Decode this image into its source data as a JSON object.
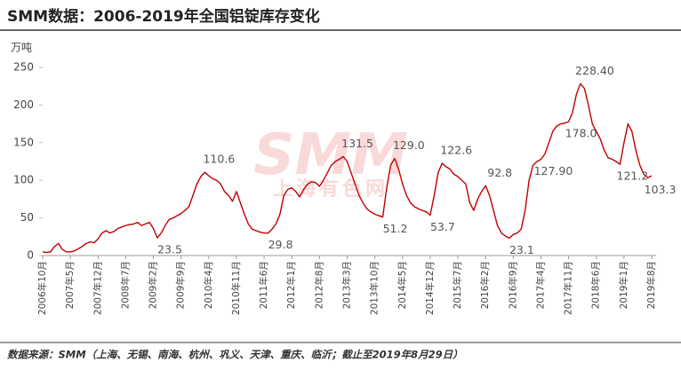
{
  "chart_data": {
    "type": "line",
    "title": "SMM数据：2006-2019年全国铝锭库存变化",
    "y_axis_label": "万吨",
    "watermark_logo": "SMM",
    "watermark_text": "上海有色网",
    "source": "数据来源：SMM（上海、无锡、南海、杭州、巩义、天津、重庆、临沂；截止至2019年8月29日）",
    "color": "#c00000",
    "ylim": [
      0,
      250
    ],
    "yticks": [
      0,
      50,
      100,
      150,
      200,
      250
    ],
    "grid": false,
    "categories": [
      "2006年10月",
      null,
      null,
      null,
      null,
      null,
      null,
      "2007年5月",
      null,
      null,
      null,
      null,
      null,
      null,
      "2007年12月",
      null,
      null,
      null,
      null,
      null,
      null,
      "2008年7月",
      null,
      null,
      null,
      null,
      null,
      null,
      "2009年2月",
      null,
      null,
      null,
      null,
      null,
      null,
      "2009年9月",
      null,
      null,
      null,
      null,
      null,
      null,
      "2010年4月",
      null,
      null,
      null,
      null,
      null,
      null,
      "2010年11月",
      null,
      null,
      null,
      null,
      null,
      null,
      "2011年6月",
      null,
      null,
      null,
      null,
      null,
      null,
      "2012年1月",
      null,
      null,
      null,
      null,
      null,
      null,
      "2012年8月",
      null,
      null,
      null,
      null,
      null,
      null,
      "2013年3月",
      null,
      null,
      null,
      null,
      null,
      null,
      "2013年10月",
      null,
      null,
      null,
      null,
      null,
      null,
      "2014年5月",
      null,
      null,
      null,
      null,
      null,
      null,
      "2014年12月",
      null,
      null,
      null,
      null,
      null,
      null,
      "2015年7月",
      null,
      null,
      null,
      null,
      null,
      null,
      "2016年2月",
      null,
      null,
      null,
      null,
      null,
      null,
      "2016年9月",
      null,
      null,
      null,
      null,
      null,
      null,
      "2017年4月",
      null,
      null,
      null,
      null,
      null,
      null,
      "2017年11月",
      null,
      null,
      null,
      null,
      null,
      null,
      "2018年6月",
      null,
      null,
      null,
      null,
      null,
      null,
      "2019年1月",
      null,
      null,
      null,
      null,
      null,
      null,
      "2019年8月"
    ],
    "values": [
      5,
      4,
      5,
      12,
      16,
      8,
      5,
      5,
      6,
      9,
      12,
      16,
      18,
      17,
      22,
      30,
      33,
      30,
      32,
      36,
      38,
      40,
      41,
      42,
      44,
      40,
      42,
      44,
      36,
      23.5,
      30,
      40,
      48,
      50,
      53,
      56,
      60,
      65,
      80,
      95,
      105,
      110.6,
      106,
      102,
      100,
      95,
      85,
      80,
      72,
      85,
      70,
      55,
      42,
      35,
      33,
      31,
      30,
      29.8,
      35,
      42,
      55,
      80,
      88,
      90,
      85,
      78,
      88,
      95,
      98,
      97,
      92,
      100,
      110,
      120,
      125,
      128,
      131.5,
      125,
      110,
      95,
      80,
      70,
      62,
      58,
      55,
      53,
      51.2,
      90,
      120,
      129,
      115,
      95,
      80,
      70,
      65,
      62,
      60,
      58,
      53.7,
      80,
      110,
      122.6,
      118,
      115,
      108,
      105,
      100,
      95,
      70,
      60,
      75,
      85,
      92.8,
      80,
      60,
      40,
      30,
      26,
      23.1,
      28,
      30,
      35,
      60,
      100,
      120,
      125,
      127.9,
      135,
      150,
      165,
      172,
      175,
      176,
      178,
      190,
      215,
      228.4,
      222,
      200,
      175,
      165,
      155,
      140,
      130,
      128,
      125,
      121.2,
      150,
      175,
      165,
      140,
      120,
      108,
      103.3,
      106
    ],
    "value_labels": [
      null,
      null,
      null,
      null,
      null,
      null,
      null,
      null,
      null,
      null,
      null,
      null,
      null,
      null,
      null,
      null,
      null,
      null,
      null,
      null,
      null,
      null,
      null,
      null,
      null,
      null,
      null,
      null,
      null,
      "23.5",
      null,
      null,
      null,
      null,
      null,
      null,
      null,
      null,
      null,
      null,
      null,
      "110.6",
      null,
      null,
      null,
      null,
      null,
      null,
      null,
      null,
      null,
      null,
      null,
      null,
      null,
      null,
      null,
      "29.8",
      null,
      null,
      null,
      null,
      null,
      null,
      null,
      null,
      null,
      null,
      null,
      null,
      null,
      null,
      null,
      null,
      null,
      null,
      "131.5",
      null,
      null,
      null,
      null,
      null,
      null,
      null,
      null,
      null,
      "51.2",
      null,
      null,
      "129.0",
      null,
      null,
      null,
      null,
      null,
      null,
      null,
      null,
      "53.7",
      null,
      null,
      "122.6",
      null,
      null,
      null,
      null,
      null,
      null,
      null,
      null,
      null,
      null,
      "92.8",
      null,
      null,
      null,
      null,
      null,
      "23.1",
      null,
      null,
      null,
      null,
      null,
      null,
      null,
      "127.90",
      null,
      null,
      null,
      null,
      null,
      null,
      "178.0",
      null,
      null,
      "228.40",
      null,
      null,
      null,
      null,
      null,
      null,
      null,
      null,
      null,
      "121.2",
      null,
      null,
      null,
      null,
      null,
      null,
      "103.3",
      null
    ]
  }
}
